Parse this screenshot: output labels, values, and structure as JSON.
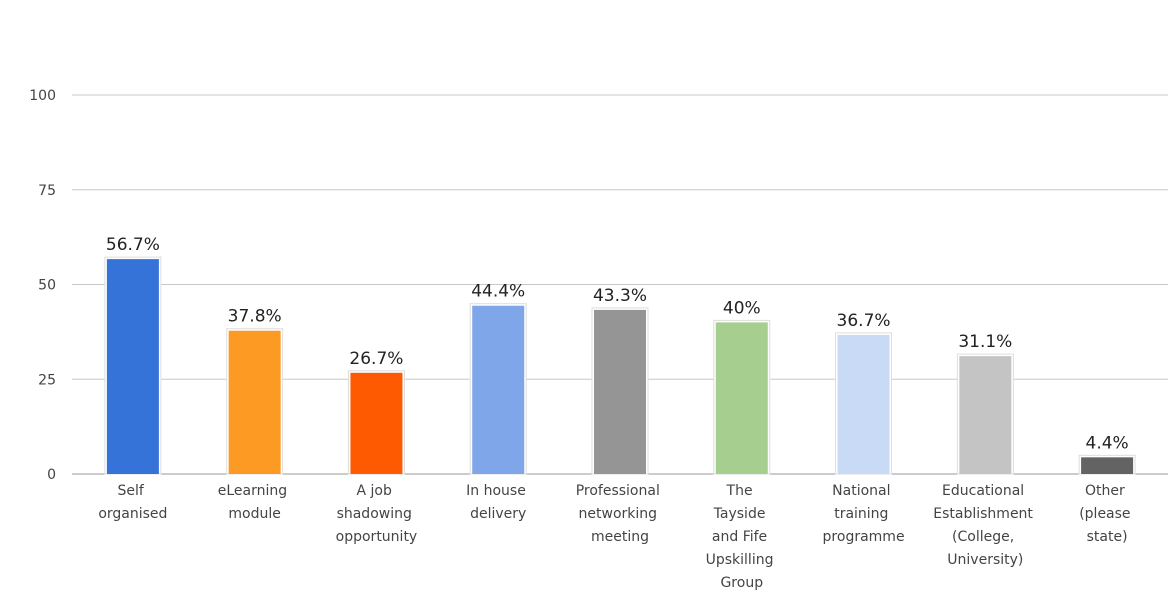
{
  "chart_data": {
    "type": "bar",
    "categories": [
      "Self organised",
      "eLearning module",
      "A job shadowing opportunity",
      "In house delivery",
      "Professional networking meeting",
      "The Tayside and Fife Upskilling Group",
      "National training programme",
      "Educational Establishment (College, University)",
      "Other (please state)"
    ],
    "values": [
      56.7,
      37.8,
      26.7,
      44.4,
      43.3,
      40,
      36.7,
      31.1,
      4.4
    ],
    "value_labels": [
      "56.7%",
      "37.8%",
      "26.7%",
      "44.4%",
      "43.3%",
      "40%",
      "36.7%",
      "31.1%",
      "4.4%"
    ],
    "colors": [
      "#3673d9",
      "#fd9a24",
      "#fe5a02",
      "#7ea6e8",
      "#959595",
      "#a6ce8e",
      "#c9daf7",
      "#c4c4c4",
      "#636363"
    ],
    "ylim": [
      0,
      100
    ],
    "yticks": [
      0,
      25,
      50,
      75,
      100
    ],
    "grid": true
  }
}
